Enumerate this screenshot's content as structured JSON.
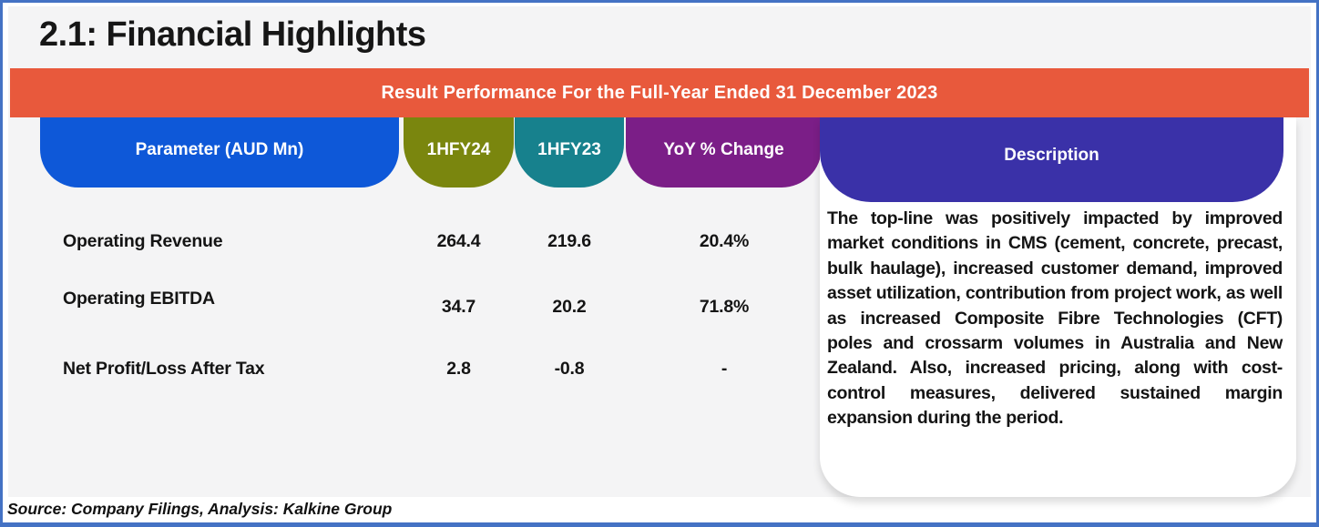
{
  "header": {
    "title": "2.1: Financial Highlights",
    "banner": "Result Performance For the Full-Year Ended 31 December 2023"
  },
  "table": {
    "columns": [
      {
        "label": "Parameter (AUD Mn)",
        "color": "#0E58D8"
      },
      {
        "label": "1HFY24",
        "color": "#7A860E"
      },
      {
        "label": "1HFY23",
        "color": "#17818D"
      },
      {
        "label": "YoY % Change",
        "color": "#7B1E87"
      },
      {
        "label": "Description",
        "color": "#3A31A8"
      }
    ],
    "rows": [
      {
        "parameter": "Operating Revenue",
        "hfy24": "264.4",
        "hfy23": "219.6",
        "yoy": "20.4%"
      },
      {
        "parameter": "Operating EBITDA",
        "hfy24": "34.7",
        "hfy23": "20.2",
        "yoy": "71.8%"
      },
      {
        "parameter": "Net Profit/Loss After Tax",
        "hfy24": "2.8",
        "hfy23": "-0.8",
        "yoy": "-"
      }
    ],
    "description": "The top-line was positively impacted by improved market conditions in CMS (cement, concrete, precast, bulk haulage), increased customer demand, improved asset utilization, contribution from project work, as well as increased Composite Fibre Technologies (CFT) poles and crossarm volumes in Australia and New Zealand. Also, increased pricing, along with cost-control measures, delivered sustained margin expansion during the period."
  },
  "footer": {
    "source": "Source: Company Filings, Analysis: Kalkine Group"
  },
  "colors": {
    "frame_border": "#4472C4",
    "slide_background": "#F4F4F5",
    "banner": "#E8593C",
    "card_background": "#FFFFFF",
    "text": "#141414"
  }
}
